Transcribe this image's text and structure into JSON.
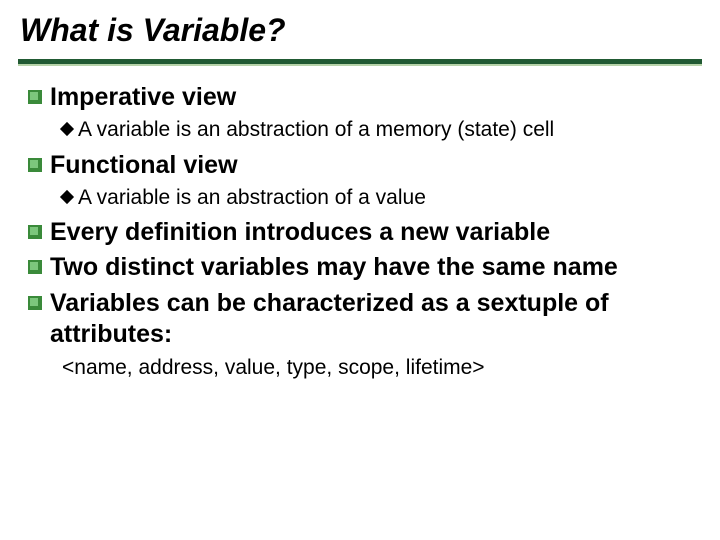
{
  "title": "What is Variable?",
  "colors": {
    "rule_dark": "#215a33",
    "rule_light": "#b7d3a9",
    "bullet_outer": "#3a8a3a",
    "bullet_inner": "#7cc67c",
    "diamond": "#000000",
    "text": "#000000",
    "background": "#ffffff"
  },
  "typography": {
    "title_fontsize": 32,
    "title_style": "bold italic",
    "lvl1_fontsize": 25,
    "lvl1_weight": "bold",
    "lvl2_fontsize": 21,
    "plain_fontsize": 21,
    "font_family": "Arial"
  },
  "items": {
    "i1": "Imperative view",
    "i1a": "A variable is an abstraction of a memory (state) cell",
    "i2": "Functional view",
    "i2a": "A variable is an abstraction of a value",
    "i3": "Every definition introduces a new variable",
    "i4": "Two distinct variables may have the same name",
    "i5": "Variables can be characterized as a sextuple of attributes:",
    "tuple": "<name, address, value, type, scope, lifetime>"
  }
}
